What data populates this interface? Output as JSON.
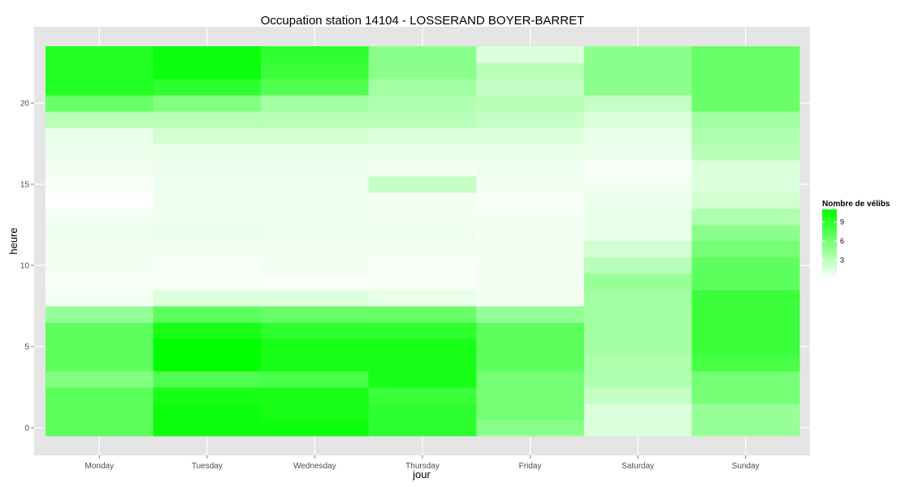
{
  "chart_data": {
    "type": "heatmap",
    "title": "Occupation station 14104 - LOSSERAND BOYER-BARRET",
    "xlabel": "jour",
    "ylabel": "heure",
    "categories": [
      "Monday",
      "Tuesday",
      "Wednesday",
      "Thursday",
      "Friday",
      "Saturday",
      "Sunday"
    ],
    "hours": [
      0,
      1,
      2,
      3,
      4,
      5,
      6,
      7,
      8,
      9,
      10,
      11,
      12,
      13,
      14,
      15,
      16,
      17,
      18,
      19,
      20,
      21,
      22,
      23
    ],
    "yticks": [
      0,
      5,
      10,
      15,
      20
    ],
    "ylim": [
      -0.5,
      23.5
    ],
    "grid": true,
    "colors": {
      "low": "#ffffff",
      "high": "#00ff00",
      "panel": "#e5e5e5",
      "gridline": "#ffffff"
    },
    "legend": {
      "title": "Nombre de vélibs",
      "position": "right",
      "ticks": [
        3,
        6,
        9
      ],
      "min": 0,
      "max": 11
    },
    "values": [
      [
        7.0,
        10.5,
        10.5,
        9.0,
        5.0,
        1.5,
        4.5
      ],
      [
        7.0,
        10.5,
        10.0,
        9.0,
        6.0,
        1.5,
        4.5
      ],
      [
        7.0,
        10.0,
        10.0,
        8.5,
        6.0,
        2.5,
        6.0
      ],
      [
        5.5,
        7.5,
        8.0,
        10.0,
        6.0,
        3.5,
        6.0
      ],
      [
        7.0,
        11.0,
        10.0,
        10.0,
        7.0,
        3.5,
        8.0
      ],
      [
        7.0,
        11.0,
        10.0,
        10.0,
        7.0,
        4.0,
        8.5
      ],
      [
        7.0,
        10.0,
        9.0,
        9.0,
        7.0,
        4.0,
        8.5
      ],
      [
        4.5,
        7.0,
        6.5,
        6.5,
        4.5,
        4.0,
        8.5
      ],
      [
        0.5,
        1.5,
        1.5,
        1.0,
        0.5,
        4.0,
        8.5
      ],
      [
        0.3,
        0.3,
        0.2,
        0.3,
        0.5,
        4.5,
        7.0
      ],
      [
        0.5,
        0.3,
        0.5,
        0.3,
        0.5,
        3.0,
        7.0
      ],
      [
        0.5,
        0.5,
        0.5,
        0.5,
        0.5,
        2.0,
        6.0
      ],
      [
        0.7,
        0.8,
        0.7,
        0.7,
        0.5,
        1.0,
        5.0
      ],
      [
        0.5,
        0.7,
        0.7,
        0.5,
        0.5,
        1.0,
        3.5
      ],
      [
        0.0,
        0.7,
        0.7,
        0.5,
        0.3,
        0.8,
        2.0
      ],
      [
        0.3,
        0.7,
        0.7,
        2.5,
        0.5,
        0.5,
        1.5
      ],
      [
        0.5,
        0.8,
        0.8,
        0.5,
        0.7,
        0.3,
        1.5
      ],
      [
        0.8,
        1.0,
        1.0,
        1.0,
        1.0,
        0.8,
        3.0
      ],
      [
        1.0,
        2.0,
        2.0,
        1.5,
        1.5,
        1.0,
        3.5
      ],
      [
        3.0,
        3.0,
        3.0,
        3.0,
        2.5,
        1.5,
        4.0
      ],
      [
        6.5,
        5.5,
        4.0,
        3.5,
        3.0,
        2.5,
        6.5
      ],
      [
        9.5,
        9.0,
        7.5,
        4.0,
        2.5,
        5.0,
        6.5
      ],
      [
        9.5,
        10.5,
        8.5,
        5.0,
        3.0,
        5.0,
        6.5
      ],
      [
        9.5,
        10.5,
        9.0,
        5.0,
        1.5,
        5.0,
        6.5
      ]
    ]
  }
}
